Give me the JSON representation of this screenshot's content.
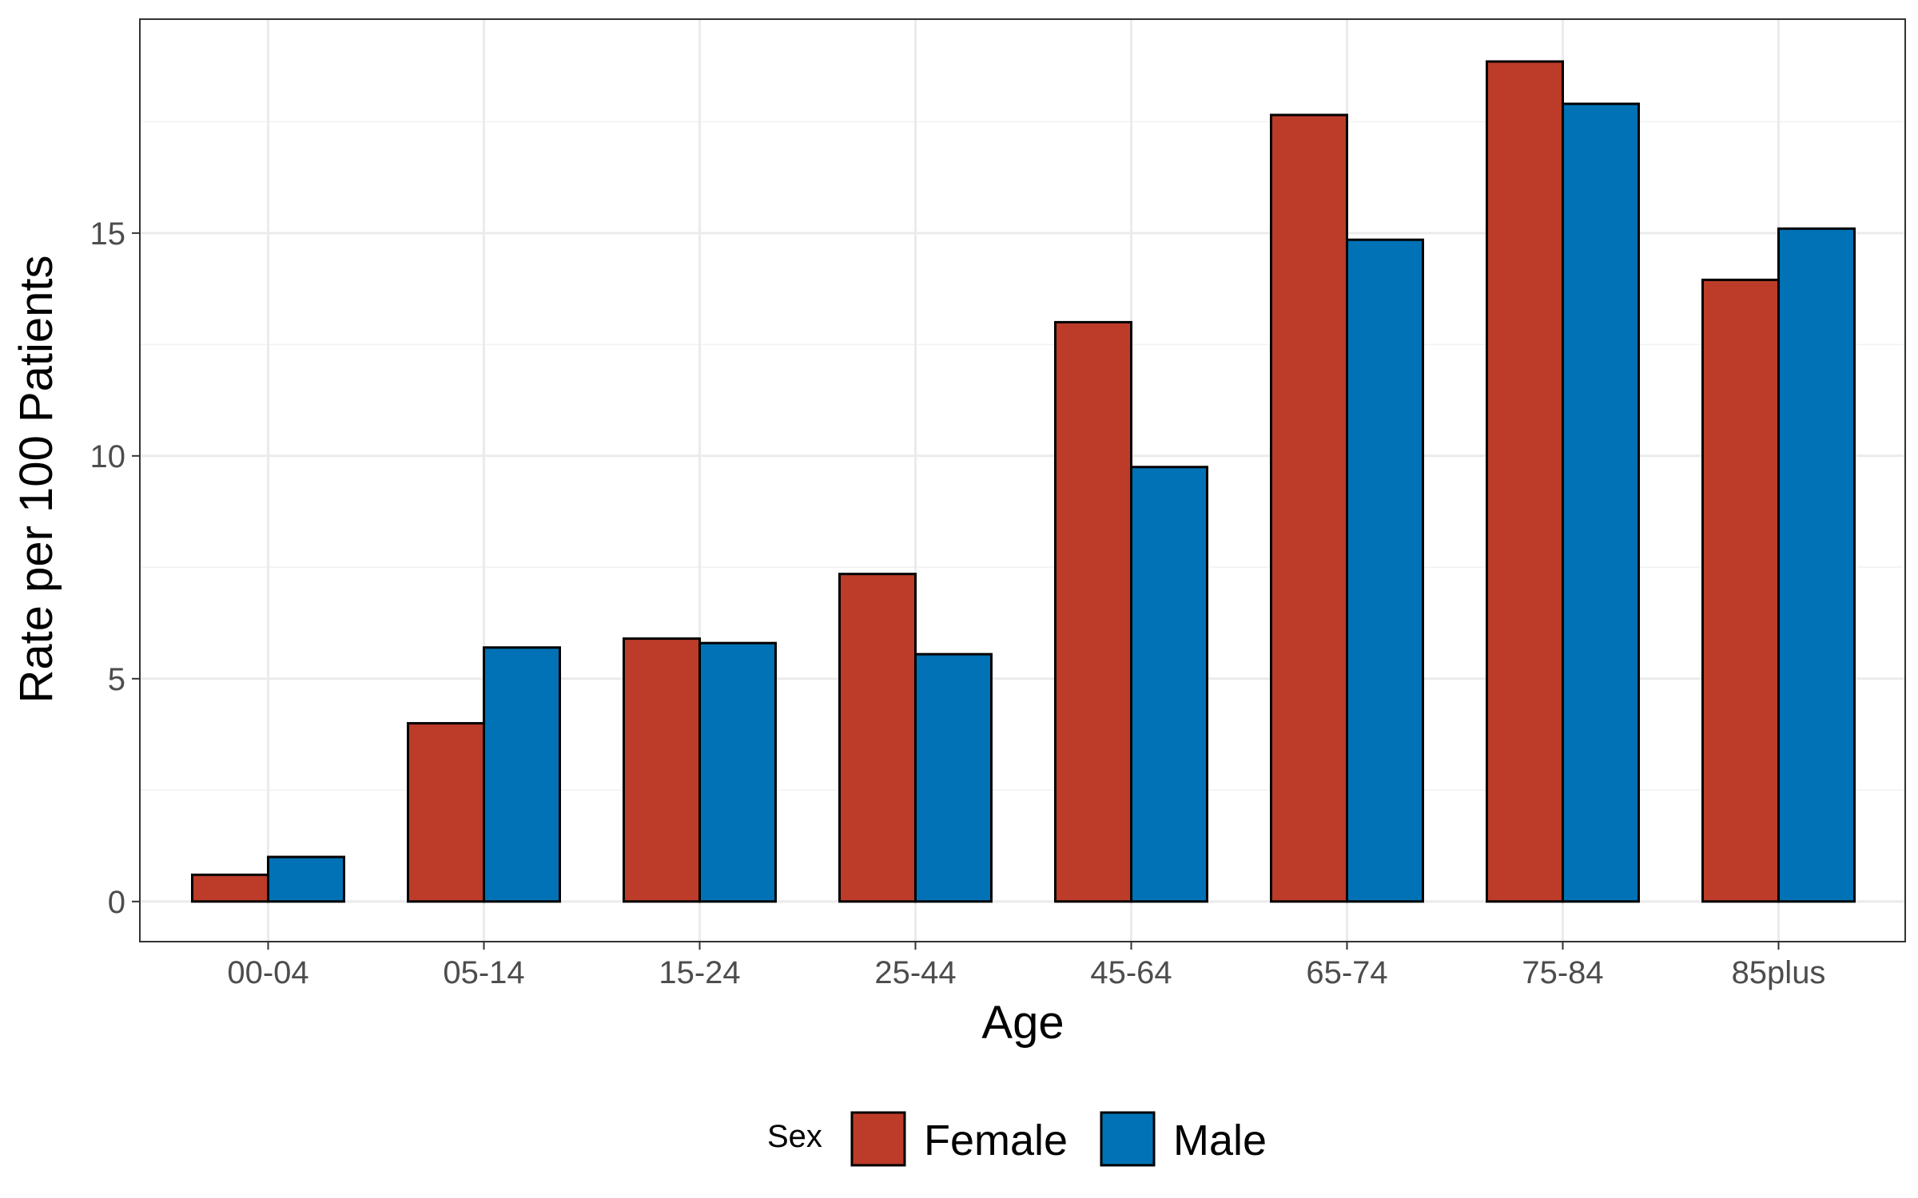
{
  "chart_data": {
    "type": "bar",
    "xlabel": "Age",
    "ylabel": "Rate per 100 Patients",
    "categories": [
      "00-04",
      "05-14",
      "15-24",
      "25-44",
      "45-64",
      "65-74",
      "75-84",
      "85plus"
    ],
    "series": [
      {
        "name": "Female",
        "color": "#bc3c29",
        "values": [
          0.6,
          4.0,
          5.9,
          7.35,
          13.0,
          17.65,
          18.85,
          13.95
        ]
      },
      {
        "name": "Male",
        "color": "#0072b5",
        "values": [
          1.0,
          5.7,
          5.8,
          5.55,
          9.75,
          14.85,
          17.9,
          15.1
        ]
      }
    ],
    "ylim": [
      -0.9,
      19.8
    ],
    "yticks": [
      0,
      5,
      10,
      15
    ],
    "ytick_labels": [
      "0",
      "5",
      "10",
      "15"
    ],
    "grid": true,
    "legend": {
      "title": "Sex",
      "position": "bottom"
    }
  }
}
